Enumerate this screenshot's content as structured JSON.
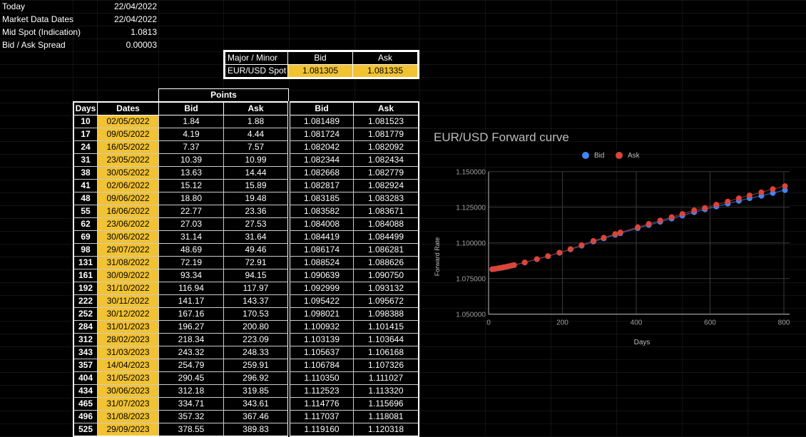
{
  "info": [
    {
      "label": "Today",
      "value": "22/04/2022"
    },
    {
      "label": "Market Data Dates",
      "value": "22/04/2022"
    },
    {
      "label": "Mid Spot (Indication)",
      "value": "1.0813"
    },
    {
      "label": "Bid / Ask Spread",
      "value": "0.00003"
    }
  ],
  "spot": {
    "header": [
      "Major / Minor",
      "Bid",
      "Ask"
    ],
    "row": [
      "EUR/USD Spot",
      "1.081305",
      "1.081335"
    ]
  },
  "forward_table": {
    "group_header": "Points",
    "headers": [
      "Days",
      "Dates",
      "Bid",
      "Ask",
      "Bid",
      "Ask"
    ],
    "rows": [
      [
        "10",
        "02/05/2022",
        "1.84",
        "1.88",
        "1.081489",
        "1.081523"
      ],
      [
        "17",
        "09/05/2022",
        "4.19",
        "4.44",
        "1.081724",
        "1.081779"
      ],
      [
        "24",
        "16/05/2022",
        "7.37",
        "7.57",
        "1.082042",
        "1.082092"
      ],
      [
        "31",
        "23/05/2022",
        "10.39",
        "10.99",
        "1.082344",
        "1.082434"
      ],
      [
        "38",
        "30/05/2022",
        "13.63",
        "14.44",
        "1.082668",
        "1.082779"
      ],
      [
        "41",
        "02/06/2022",
        "15.12",
        "15.89",
        "1.082817",
        "1.082924"
      ],
      [
        "48",
        "09/06/2022",
        "18.80",
        "19.48",
        "1.083185",
        "1.083283"
      ],
      [
        "55",
        "16/06/2022",
        "22.77",
        "23.36",
        "1.083582",
        "1.083671"
      ],
      [
        "62",
        "23/06/2022",
        "27.03",
        "27.53",
        "1.084008",
        "1.084088"
      ],
      [
        "69",
        "30/06/2022",
        "31.14",
        "31.64",
        "1.084419",
        "1.084499"
      ],
      [
        "98",
        "29/07/2022",
        "48.69",
        "49.46",
        "1.086174",
        "1.086281"
      ],
      [
        "131",
        "31/08/2022",
        "72.19",
        "72.91",
        "1.088524",
        "1.088626"
      ],
      [
        "161",
        "30/09/2022",
        "93.34",
        "94.15",
        "1.090639",
        "1.090750"
      ],
      [
        "192",
        "31/10/2022",
        "116.94",
        "117.97",
        "1.092999",
        "1.093132"
      ],
      [
        "222",
        "30/11/2022",
        "141.17",
        "143.37",
        "1.095422",
        "1.095672"
      ],
      [
        "252",
        "30/12/2022",
        "167.16",
        "170.53",
        "1.098021",
        "1.098388"
      ],
      [
        "284",
        "31/01/2023",
        "196.27",
        "200.80",
        "1.100932",
        "1.101415"
      ],
      [
        "312",
        "28/02/2023",
        "218.34",
        "223.09",
        "1.103139",
        "1.103644"
      ],
      [
        "343",
        "31/03/2023",
        "243.32",
        "248.33",
        "1.105637",
        "1.106168"
      ],
      [
        "357",
        "14/04/2023",
        "254.79",
        "259.91",
        "1.106784",
        "1.107326"
      ],
      [
        "404",
        "31/05/2023",
        "290.45",
        "296.92",
        "1.110350",
        "1.111027"
      ],
      [
        "434",
        "30/06/2023",
        "312.18",
        "319.85",
        "1.112523",
        "1.113320"
      ],
      [
        "465",
        "31/07/2023",
        "334.71",
        "343.61",
        "1.114776",
        "1.115696"
      ],
      [
        "496",
        "31/08/2023",
        "357.32",
        "367.46",
        "1.117037",
        "1.118081"
      ],
      [
        "525",
        "29/09/2023",
        "378.55",
        "389.83",
        "1.119160",
        "1.120318"
      ]
    ]
  },
  "colors": {
    "highlight": "#f1c232",
    "bid": "#4285f4",
    "ask": "#db4437"
  },
  "chart_data": {
    "type": "scatter",
    "title": "EUR/USD Forward curve",
    "xlabel": "Days",
    "ylabel": "Forward Rate",
    "xlim": [
      0,
      800
    ],
    "ylim": [
      1.05,
      1.15
    ],
    "xticks": [
      "0",
      "200",
      "400",
      "600",
      "800"
    ],
    "yticks": [
      "1.050000",
      "1.075000",
      "1.100000",
      "1.125000",
      "1.150000"
    ],
    "legend": [
      "Bid",
      "Ask"
    ],
    "legend_position": "top",
    "x": [
      10,
      17,
      24,
      31,
      38,
      41,
      48,
      55,
      62,
      69,
      98,
      131,
      161,
      192,
      222,
      252,
      284,
      312,
      343,
      357,
      404,
      434,
      465,
      496,
      525,
      557,
      586,
      617,
      648,
      678,
      707,
      739,
      770,
      803
    ],
    "series": [
      {
        "name": "Bid",
        "values": [
          1.081489,
          1.081724,
          1.082042,
          1.082344,
          1.082668,
          1.082817,
          1.083185,
          1.083582,
          1.084008,
          1.084419,
          1.086174,
          1.088524,
          1.090639,
          1.092999,
          1.095422,
          1.098021,
          1.100932,
          1.103139,
          1.105637,
          1.106784,
          1.11035,
          1.112523,
          1.114776,
          1.117037,
          1.11916,
          1.1215,
          1.1235,
          1.1255,
          1.1275,
          1.1295,
          1.1313,
          1.133,
          1.135,
          1.137
        ]
      },
      {
        "name": "Ask",
        "values": [
          1.081523,
          1.081779,
          1.082092,
          1.082434,
          1.082779,
          1.082924,
          1.083283,
          1.083671,
          1.084088,
          1.084499,
          1.086281,
          1.088626,
          1.09075,
          1.093132,
          1.095672,
          1.098388,
          1.101415,
          1.103644,
          1.106168,
          1.107326,
          1.111027,
          1.11332,
          1.115696,
          1.118081,
          1.120318,
          1.1228,
          1.1245,
          1.1268,
          1.129,
          1.1313,
          1.1333,
          1.1355,
          1.1377,
          1.1398
        ]
      }
    ]
  }
}
